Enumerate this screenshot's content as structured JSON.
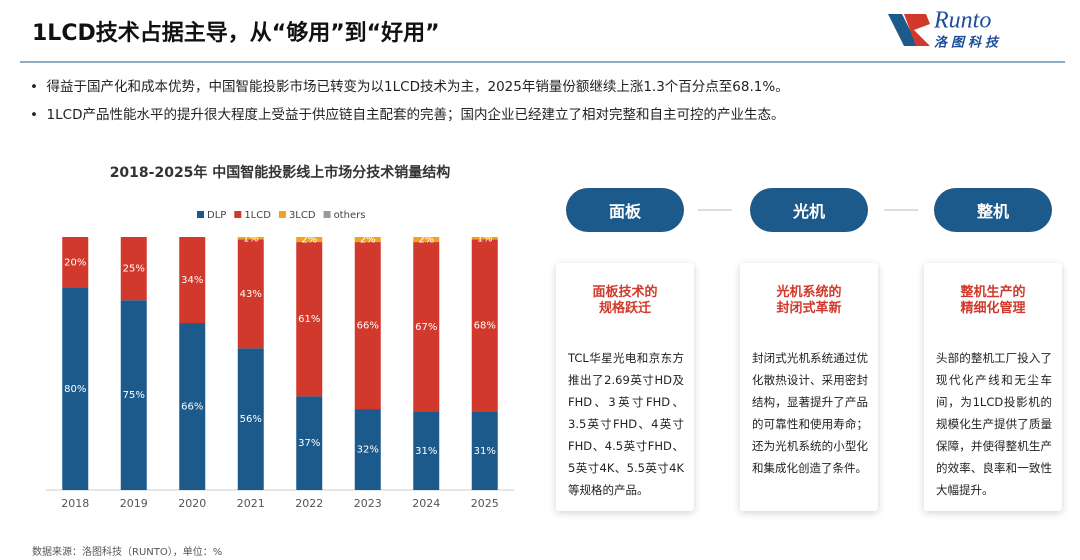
{
  "header": {
    "title": "1LCD技术占据主导，从“够用”到“好用”",
    "logo_text": "Runto",
    "logo_subtext": "洛图科技"
  },
  "bullets": [
    "得益于国产化和成本优势，中国智能投影市场已转变为以1LCD技术为主，2025年销量份额继续上涨1.3个百分点至68.1%。",
    "1LCD产品性能水平的提升很大程度上受益于供应链自主配套的完善；国内企业已经建立了相对完整和自主可控的产业生态。"
  ],
  "chart_data": {
    "type": "bar",
    "stacked": true,
    "title": "2018-2025年 中国智能投影线上市场分技术销量结构",
    "categories": [
      "2018",
      "2019",
      "2020",
      "2021",
      "2022",
      "2023",
      "2024",
      "2025"
    ],
    "ylim": [
      0,
      100
    ],
    "series": [
      {
        "name": "DLP",
        "color": "#1d5a8c",
        "values": [
          80,
          75,
          66,
          56,
          37,
          32,
          31,
          31
        ],
        "value_labels": [
          "80%",
          "75%",
          "66%",
          "56%",
          "37%",
          "32%",
          "31%",
          "31%"
        ]
      },
      {
        "name": "1LCD",
        "color": "#d0392b",
        "values": [
          20,
          25,
          34,
          43,
          61,
          66,
          67,
          68
        ],
        "value_labels": [
          "20%",
          "25%",
          "34%",
          "43%",
          "61%",
          "66%",
          "67%",
          "68%"
        ]
      },
      {
        "name": "3LCD",
        "color": "#f3a21f",
        "values": [
          0,
          0,
          0,
          1,
          2,
          2,
          2,
          1
        ],
        "value_labels": [
          null,
          null,
          null,
          "1%",
          "2%",
          "2%",
          "2%",
          "1%"
        ]
      },
      {
        "name": "others",
        "color": "#9a9a9a",
        "values": [
          0,
          0,
          0,
          0,
          0,
          0,
          0,
          0
        ]
      }
    ]
  },
  "source_note": "数据来源：洛图科技（RUNTO），单位：%",
  "panels": [
    {
      "label": "面板",
      "title": [
        "面板技术的",
        "规格跃迁"
      ],
      "text": "TCL华星光电和京东方推出了2.69英寸HD及FHD、3英寸FHD、3.5英寸FHD、4英寸FHD、4.5英寸FHD、5英寸4K、5.5英寸4K等规格的产品。"
    },
    {
      "label": "光机",
      "title": [
        "光机系统的",
        "封闭式革新"
      ],
      "text": "封闭式光机系统通过优化散热设计、采用密封结构，显著提升了产品的可靠性和使用寿命；还为光机系统的小型化和集成化创造了条件。"
    },
    {
      "label": "整机",
      "title": [
        "整机生产的",
        "精细化管理"
      ],
      "text": "头部的整机工厂投入了现代化产线和无尘车间，为1LCD投影机的规模化生产提供了质量保障，并使得整机生产的效率、良率和一致性大幅提升。"
    }
  ]
}
